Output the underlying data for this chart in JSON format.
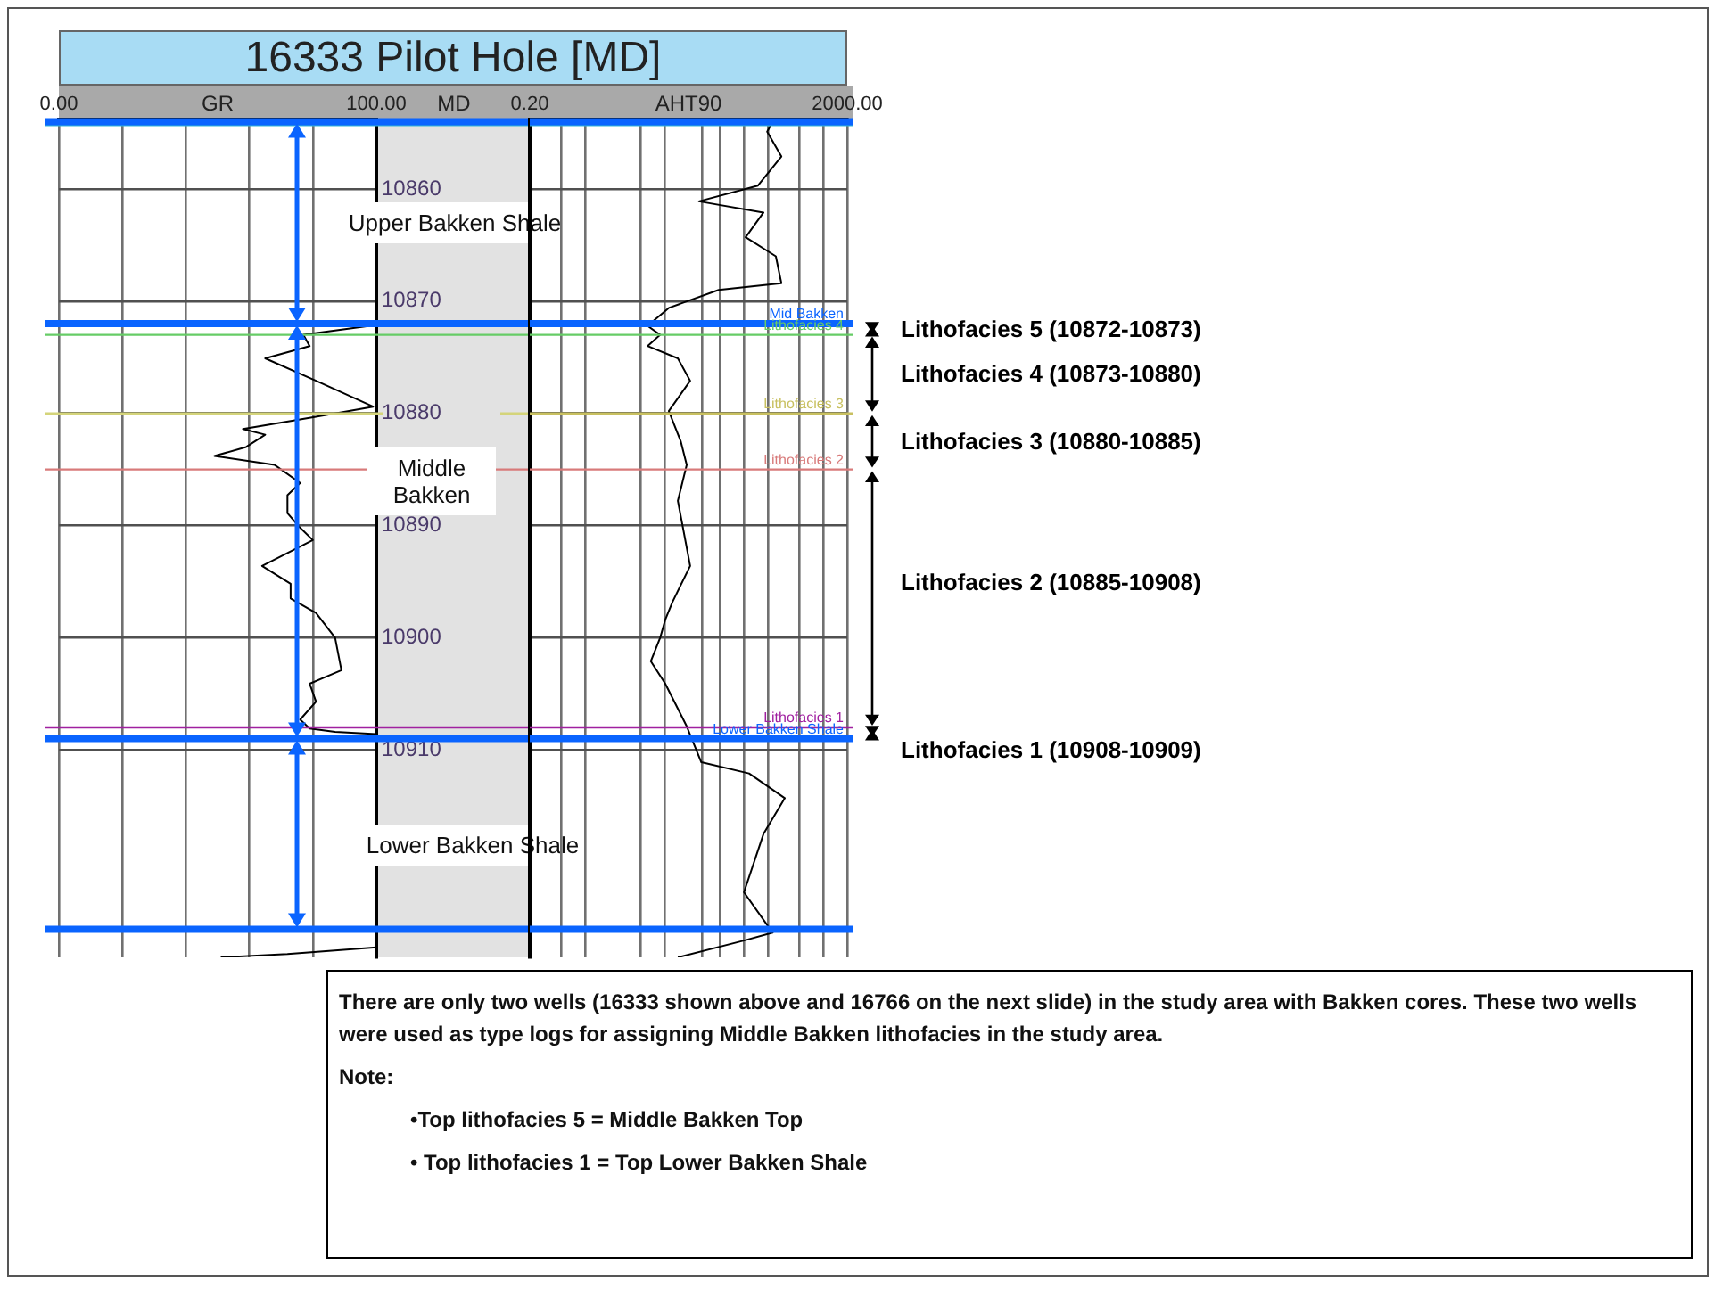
{
  "chart_data": [
    {
      "type": "line",
      "title": "16333 Pilot Hole [MD]",
      "xlabel": "GR",
      "ylabel": "MD",
      "xlim": [
        0,
        100
      ],
      "xticks": [
        {
          "value": 0,
          "label": "0.00"
        },
        {
          "value": 20,
          "label": null
        },
        {
          "value": 40,
          "label": null
        },
        {
          "value": 60,
          "label": null
        },
        {
          "value": 80,
          "label": null
        },
        {
          "value": 100,
          "label": "100.00"
        }
      ],
      "ylim": [
        10928.5,
        10853.8
      ],
      "yticks": [
        10860,
        10870,
        10880,
        10890,
        10900,
        10910
      ],
      "grid": true,
      "series": [
        {
          "color": "#000000",
          "x": [
            100,
            98,
            77,
            79,
            65,
            81,
            99,
            81,
            58,
            65,
            59,
            49,
            68,
            76,
            72,
            72,
            76,
            80,
            64,
            73,
            73,
            81,
            87,
            89,
            79,
            81,
            76,
            79,
            87,
            100,
            null,
            100,
            72,
            51
          ],
          "values": [
            10872,
            10872.2,
            10873,
            10874,
            10875.1,
            10877.1,
            10879.4,
            10880.3,
            10881.4,
            10881.9,
            10883,
            10883.8,
            10884.6,
            10886.2,
            10887.3,
            10888.9,
            10890.2,
            10891.3,
            10893.6,
            10895.2,
            10896.5,
            10897.8,
            10900,
            10902.9,
            10904.1,
            10905.7,
            10907.3,
            10908.1,
            10908.4,
            10908.6,
            null,
            10927.6,
            10928.2,
            10928.5
          ]
        }
      ],
      "ref_lines": [
        {
          "axis": "y",
          "value": 10854.3,
          "color": "#33b5d5"
        },
        {
          "axis": "y",
          "value": 10854,
          "color": "#0a64ff"
        },
        {
          "axis": "y",
          "value": 10872,
          "color": "#0a64ff"
        },
        {
          "axis": "y",
          "value": 10873,
          "color": "#66cc66"
        },
        {
          "axis": "y",
          "value": 10880,
          "color": "#d4d47a"
        },
        {
          "axis": "y",
          "value": 10885,
          "color": "#d87a7a"
        },
        {
          "axis": "y",
          "value": 10908,
          "color": "#a020a0"
        },
        {
          "axis": "y",
          "value": 10909,
          "color": "#0a64ff"
        },
        {
          "axis": "y",
          "value": 10926,
          "color": "#0a64ff"
        }
      ],
      "annotations": [
        "Upper Bakken Shale",
        "Middle Bakken",
        "Lower Bakken Shale"
      ]
    },
    {
      "type": "line",
      "xlabel": "AHT90",
      "log": "x",
      "xlim": [
        0.2,
        2000
      ],
      "xticks": [
        {
          "value": 0.2,
          "label": "0.20"
        },
        {
          "value": 0.5,
          "label": null
        },
        {
          "value": 1,
          "label": null
        },
        {
          "value": 5,
          "label": null
        },
        {
          "value": 10,
          "label": null
        },
        {
          "value": 30,
          "label": null
        },
        {
          "value": 50,
          "label": null
        },
        {
          "value": 100,
          "label": null
        },
        {
          "value": 200,
          "label": null
        },
        {
          "value": 500,
          "label": null
        },
        {
          "value": 1000,
          "label": null
        },
        {
          "value": 2000,
          "label": "2000.00"
        }
      ],
      "ylim": [
        10928.5,
        10853.8
      ],
      "yticks": [
        10860,
        10870,
        10880,
        10890,
        10900,
        10910
      ],
      "tick_labels": "x",
      "grid": true,
      "series": [
        {
          "color": "#000000",
          "x": [
            230,
            196,
            296,
            150,
            27,
            176,
            105,
            252,
            296,
            48,
            11.3,
            6.1,
            8.8,
            6.1,
            14.7,
            21,
            11.3,
            16,
            19,
            14.7,
            21,
            12.6,
            10.2,
            8.8,
            6.7,
            10.2,
            19,
            29,
            116,
            327,
            176,
            100,
            230,
            100,
            14.7
          ],
          "values": [
            10854,
            10854.9,
            10857.1,
            10859.7,
            10861.1,
            10862.1,
            10864.3,
            10866,
            10868.4,
            10869,
            10870.6,
            10872.2,
            10873,
            10874,
            10875.1,
            10877.1,
            10879.8,
            10882.5,
            10884.6,
            10887.8,
            10893.6,
            10896.8,
            10898.4,
            10900,
            10902.1,
            10904.1,
            10907.9,
            10911.1,
            10912.1,
            10914.3,
            10917.5,
            10922.7,
            10926.3,
            10927,
            10928.5
          ]
        }
      ],
      "ref_lines": [
        {
          "axis": "y",
          "value": 10854.3,
          "color": "#33b5d5"
        },
        {
          "axis": "y",
          "value": 10854,
          "color": "#0a64ff"
        },
        {
          "axis": "y",
          "value": 10872,
          "color": "#0a64ff",
          "label": "Mid Bakken"
        },
        {
          "axis": "y",
          "value": 10873,
          "color": "#66cc66",
          "label": "Lithofacies 4"
        },
        {
          "axis": "y",
          "value": 10880,
          "color": "#c8c060",
          "label": "Lithofacies 3"
        },
        {
          "axis": "y",
          "value": 10885,
          "color": "#d87a7a",
          "label": "Lithofacies 2"
        },
        {
          "axis": "y",
          "value": 10908,
          "color": "#a020a0",
          "label": "Lithofacies 1"
        },
        {
          "axis": "y",
          "value": 10909,
          "color": "#0a64ff",
          "label": "Lower Bakken Shale"
        },
        {
          "axis": "y",
          "value": 10926,
          "color": "#0a64ff"
        }
      ],
      "annotations": [
        "Lithofacies 5 (10872-10873)",
        "Lithofacies 4 (10873-10880)",
        "Lithofacies 3 (10880-10885)",
        "Lithofacies 2 (10885-10908)",
        "Lithofacies 1 (10908-10909)"
      ]
    },
    {
      "type": "other",
      "annotations": [
        "There are only two wells (16333 shown above and 16766 on the next slide) in the study area with Bakken cores.  These two wells were used as type logs for assigning Middle Bakken lithofacies in the study area.",
        "Note:",
        "•Top lithofacies 5 = Middle Bakken Top",
        "• Top lithofacies 1 = Top Lower Bakken Shale"
      ]
    }
  ]
}
